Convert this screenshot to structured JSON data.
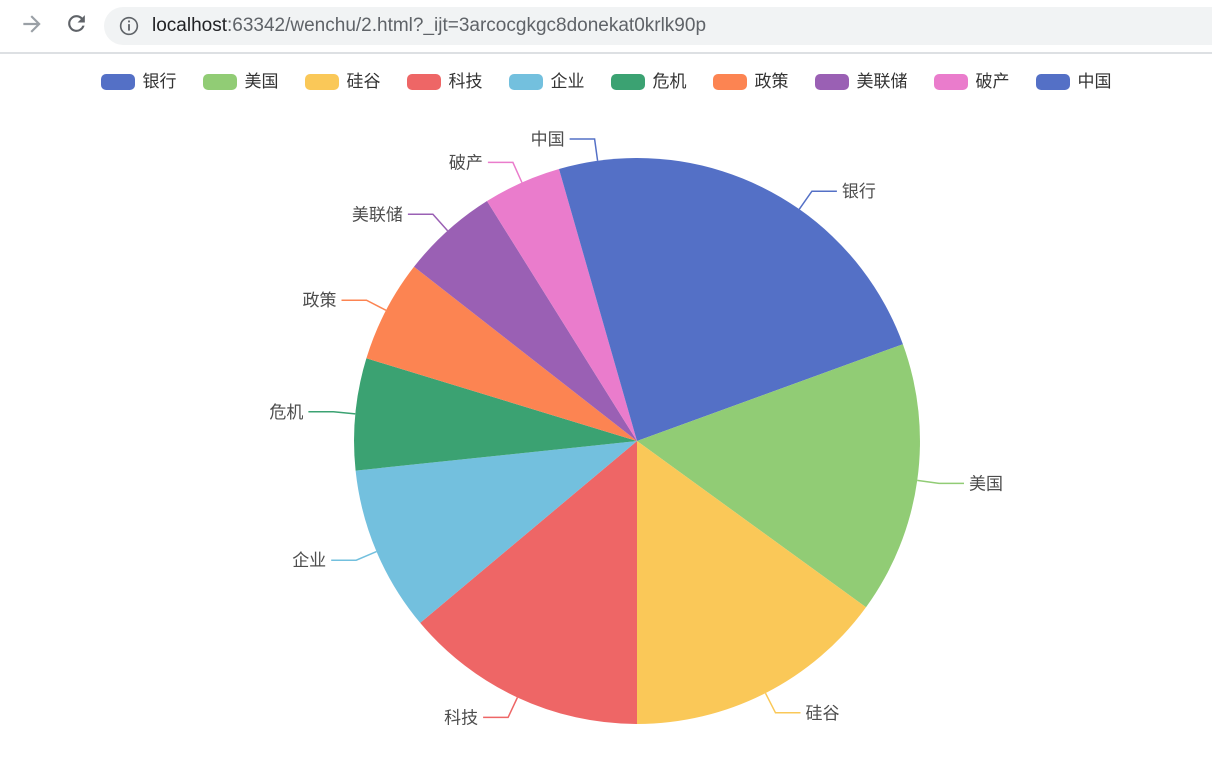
{
  "browser": {
    "url_host": "localhost",
    "url_rest": ":63342/wenchu/2.html?_ijt=3arcocgkgc8donekat0krlk90p",
    "icons": {
      "forward-icon": "→",
      "reload-icon": "⟳",
      "page-info-icon": "ⓘ"
    }
  },
  "chart_data": {
    "type": "pie",
    "title": "",
    "legend_position": "top",
    "start_angle_deg": 90,
    "clockwise": true,
    "label_outside": true,
    "label_color": "#4d4d4d",
    "values_are": "estimated arc degrees read from slice boundaries (relative weights)",
    "legend": [
      "银行",
      "美国",
      "硅谷",
      "科技",
      "企业",
      "危机",
      "政策",
      "美联储",
      "破产",
      "中国"
    ],
    "series": [
      {
        "name": "银行",
        "value": 70,
        "percent": 19.4,
        "color": "#5470c6"
      },
      {
        "name": "美国",
        "value": 56,
        "percent": 15.6,
        "color": "#91cc75"
      },
      {
        "name": "硅谷",
        "value": 54,
        "percent": 15.0,
        "color": "#fac858"
      },
      {
        "name": "科技",
        "value": 50,
        "percent": 13.9,
        "color": "#ee6666"
      },
      {
        "name": "企业",
        "value": 34,
        "percent": 9.4,
        "color": "#73c0de"
      },
      {
        "name": "危机",
        "value": 23,
        "percent": 6.4,
        "color": "#3ba272"
      },
      {
        "name": "政策",
        "value": 21,
        "percent": 5.8,
        "color": "#fc8452"
      },
      {
        "name": "美联储",
        "value": 20,
        "percent": 5.6,
        "color": "#9a60b4"
      },
      {
        "name": "破产",
        "value": 16,
        "percent": 4.4,
        "color": "#ea7ccc"
      },
      {
        "name": "中国",
        "value": 16,
        "percent": 4.4,
        "color": "#5470c6"
      }
    ]
  }
}
